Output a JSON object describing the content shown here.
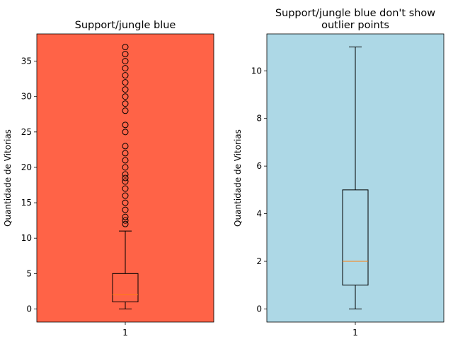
{
  "chart_data": [
    {
      "type": "box",
      "title": "Support/jungle blue",
      "title_lines": [
        "Support/jungle blue"
      ],
      "xlabel": "",
      "ylabel": "Quantidade de Vitorias",
      "categories": [
        "1"
      ],
      "background": "#ff6347",
      "ylim": [
        -1.85,
        38.85
      ],
      "yticks": [
        0,
        5,
        10,
        15,
        20,
        25,
        30,
        35
      ],
      "show_outliers": true,
      "box": {
        "whisker_low": 0,
        "q1": 1,
        "median": 2,
        "q3": 5,
        "whisker_high": 11,
        "outliers": [
          12,
          12.5,
          13,
          14,
          15,
          16,
          17,
          18,
          18.5,
          19,
          20,
          21,
          22,
          23,
          25,
          26,
          28,
          29,
          30,
          31,
          32,
          33,
          34,
          35,
          36,
          37
        ]
      }
    },
    {
      "type": "box",
      "title": "Support/jungle blue don't show outlier points",
      "title_lines": [
        "Support/jungle blue don't show",
        "outlier points"
      ],
      "xlabel": "",
      "ylabel": "Quantidade de Vitorias",
      "categories": [
        "1"
      ],
      "background": "#add8e6",
      "ylim": [
        -0.55,
        11.55
      ],
      "yticks": [
        0,
        2,
        4,
        6,
        8,
        10
      ],
      "show_outliers": false,
      "box": {
        "whisker_low": 0,
        "q1": 1,
        "median": 2,
        "q3": 5,
        "whisker_high": 11,
        "outliers": []
      }
    }
  ],
  "colors": {
    "median": "#ff7f0e",
    "box_edge": "#000000",
    "axes_edge": "#000000"
  }
}
